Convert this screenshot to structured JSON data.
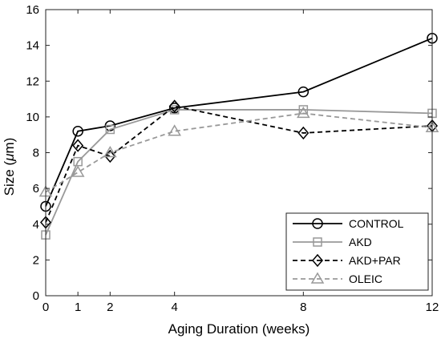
{
  "chart_data": {
    "type": "line",
    "xlabel": "Aging Duration (weeks)",
    "ylabel_main": "Size (",
    "ylabel_greek": "μ",
    "ylabel_tail": "m)",
    "xlim": [
      0,
      12
    ],
    "ylim": [
      0,
      16
    ],
    "xticks": [
      0,
      1,
      2,
      4,
      8,
      12
    ],
    "yticks": [
      0,
      2,
      4,
      6,
      8,
      10,
      12,
      14,
      16
    ],
    "grid": false,
    "legend_position": "bottom-right",
    "series": [
      {
        "name": "CONTROL",
        "x": [
          0,
          1,
          2,
          4,
          8,
          12
        ],
        "y": [
          5.0,
          9.2,
          9.5,
          10.5,
          11.4,
          14.4
        ],
        "color": "#000000",
        "dash": "solid",
        "marker": "circle"
      },
      {
        "name": "AKD",
        "x": [
          0,
          1,
          2,
          4,
          8,
          12
        ],
        "y": [
          3.4,
          7.5,
          9.3,
          10.4,
          10.4,
          10.2
        ],
        "color": "#999999",
        "dash": "solid",
        "marker": "square"
      },
      {
        "name": "AKD+PAR",
        "x": [
          0,
          1,
          2,
          4,
          8,
          12
        ],
        "y": [
          4.1,
          8.4,
          7.8,
          10.6,
          9.1,
          9.5
        ],
        "color": "#000000",
        "dash": "dashed",
        "marker": "diamond"
      },
      {
        "name": "OLEIC",
        "x": [
          0,
          1,
          2,
          4,
          8,
          12
        ],
        "y": [
          5.8,
          6.9,
          8.0,
          9.2,
          10.2,
          9.4
        ],
        "color": "#999999",
        "dash": "dashed",
        "marker": "triangle"
      }
    ]
  }
}
